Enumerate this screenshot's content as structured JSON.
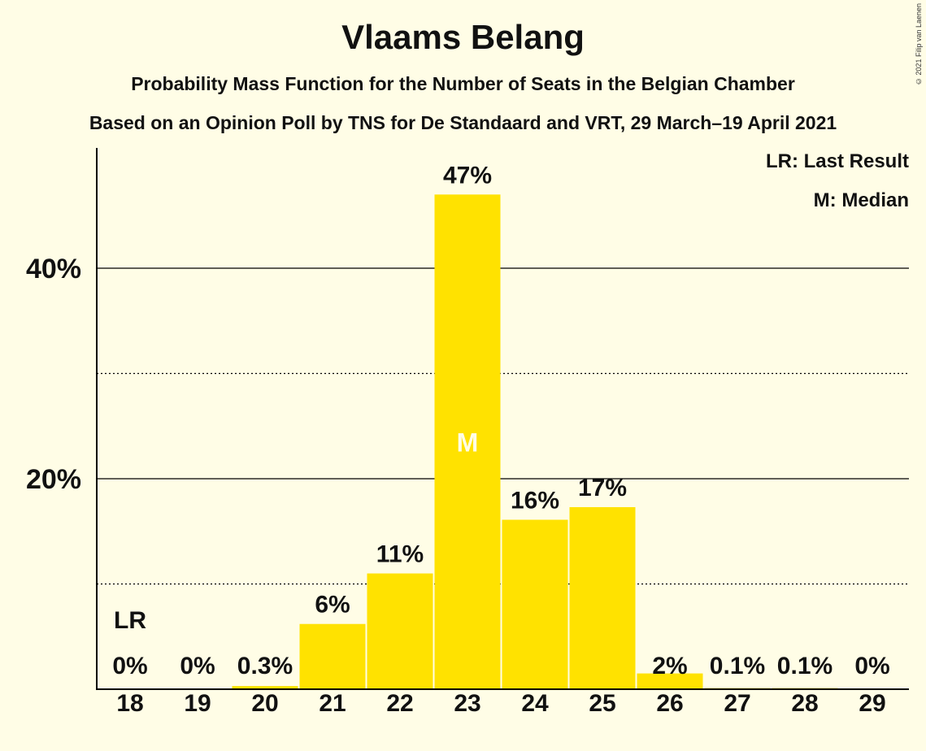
{
  "title": "Vlaams Belang",
  "subtitle1": "Probability Mass Function for the Number of Seats in the Belgian Chamber",
  "subtitle2": "Based on an Opinion Poll by TNS for De Standaard and VRT, 29 March–19 April 2021",
  "copyright": "© 2021 Filip van Laenen",
  "legend": {
    "last_result": "LR: Last Result",
    "median": "M: Median"
  },
  "colors": {
    "bar": "#FFE200",
    "background": "#FFFDE6",
    "axis": "#000000",
    "median_marker": "#FFFDE6"
  },
  "chart_data": {
    "type": "bar",
    "categories": [
      "18",
      "19",
      "20",
      "21",
      "22",
      "23",
      "24",
      "25",
      "26",
      "27",
      "28",
      "29"
    ],
    "values": [
      0,
      0,
      0.3,
      6.2,
      11,
      47,
      16.1,
      17.3,
      1.5,
      0.1,
      0.1,
      0
    ],
    "labels": [
      "0%",
      "0%",
      "0.3%",
      "6%",
      "11%",
      "47%",
      "16%",
      "17%",
      "2%",
      "0.1%",
      "0.1%",
      "0%"
    ],
    "yticks": [
      20,
      40
    ],
    "ytick_labels": [
      "20%",
      "40%"
    ],
    "minor_gridlines": [
      10,
      30
    ],
    "ylim": [
      0,
      50
    ],
    "last_result": "18",
    "last_result_label": "LR",
    "median": "23",
    "median_label": "M",
    "grid": true,
    "legend_position": "top-right"
  }
}
